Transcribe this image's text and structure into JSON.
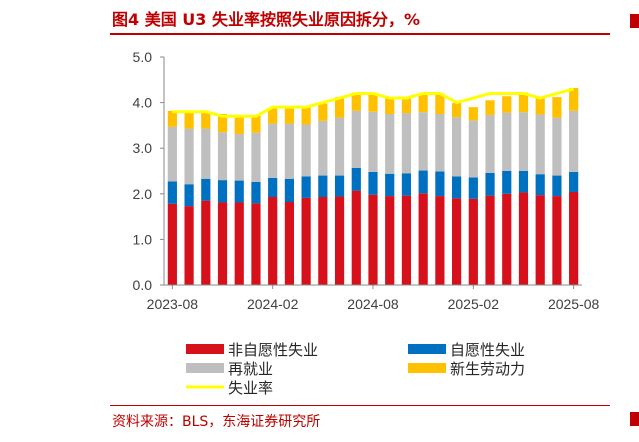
{
  "header": {
    "title": "图4  美国 U3 失业率按照失业原因拆分，%"
  },
  "footer": {
    "source": "资料来源：BLS，东海证券研究所"
  },
  "colors": {
    "brand": "#c00000"
  },
  "chart_data": {
    "type": "bar",
    "stacked": true,
    "title": "",
    "xlabel": "",
    "ylabel": "",
    "ylim": [
      0,
      5
    ],
    "yticks": [
      "0.0",
      "1.0",
      "2.0",
      "3.0",
      "4.0",
      "5.0"
    ],
    "xtick_labels": [
      "2023-08",
      "2024-02",
      "2024-08",
      "2025-02",
      "2025-08"
    ],
    "grid": false,
    "legend_position": "bottom",
    "categories": [
      "2023-08",
      "2023-09",
      "2023-10",
      "2023-11",
      "2023-12",
      "2024-01",
      "2024-02",
      "2024-03",
      "2024-04",
      "2024-05",
      "2024-06",
      "2024-07",
      "2024-08",
      "2024-09",
      "2024-10",
      "2024-11",
      "2024-12",
      "2025-01",
      "2025-02",
      "2025-03",
      "2025-04",
      "2025-05",
      "2025-06",
      "2025-07",
      "2025-08"
    ],
    "series": [
      {
        "name": "非自愿性失业",
        "type": "bar",
        "color": "#d7111b",
        "values": [
          1.78,
          1.73,
          1.85,
          1.81,
          1.81,
          1.79,
          1.93,
          1.82,
          1.91,
          1.93,
          1.94,
          2.07,
          1.98,
          1.95,
          1.96,
          2.01,
          1.95,
          1.9,
          1.89,
          1.96,
          2.0,
          2.03,
          1.97,
          1.95,
          2.04
        ]
      },
      {
        "name": "自愿性失业",
        "type": "bar",
        "color": "#0070c0",
        "values": [
          0.49,
          0.48,
          0.48,
          0.49,
          0.48,
          0.47,
          0.42,
          0.51,
          0.47,
          0.47,
          0.46,
          0.5,
          0.5,
          0.49,
          0.49,
          0.5,
          0.54,
          0.48,
          0.47,
          0.5,
          0.5,
          0.47,
          0.46,
          0.45,
          0.44
        ]
      },
      {
        "name": "再就业",
        "type": "bar",
        "color": "#bfbfbf",
        "values": [
          1.2,
          1.22,
          1.1,
          1.05,
          1.02,
          1.08,
          1.19,
          1.21,
          1.14,
          1.2,
          1.27,
          1.25,
          1.32,
          1.31,
          1.32,
          1.28,
          1.26,
          1.3,
          1.25,
          1.27,
          1.28,
          1.29,
          1.31,
          1.27,
          1.34
        ]
      },
      {
        "name": "新生劳动力",
        "type": "bar",
        "color": "#ffc000",
        "values": [
          0.35,
          0.35,
          0.35,
          0.4,
          0.37,
          0.38,
          0.33,
          0.36,
          0.38,
          0.38,
          0.45,
          0.4,
          0.38,
          0.35,
          0.33,
          0.41,
          0.45,
          0.31,
          0.29,
          0.32,
          0.36,
          0.43,
          0.39,
          0.45,
          0.5
        ]
      },
      {
        "name": "失业率",
        "type": "line",
        "color": "#ffff00",
        "values": [
          3.8,
          3.8,
          3.8,
          3.7,
          3.7,
          3.7,
          3.9,
          3.9,
          3.9,
          4.0,
          4.1,
          4.2,
          4.2,
          4.1,
          4.1,
          4.2,
          4.2,
          4.0,
          4.1,
          4.2,
          4.2,
          4.2,
          4.1,
          4.2,
          4.3
        ]
      }
    ]
  }
}
